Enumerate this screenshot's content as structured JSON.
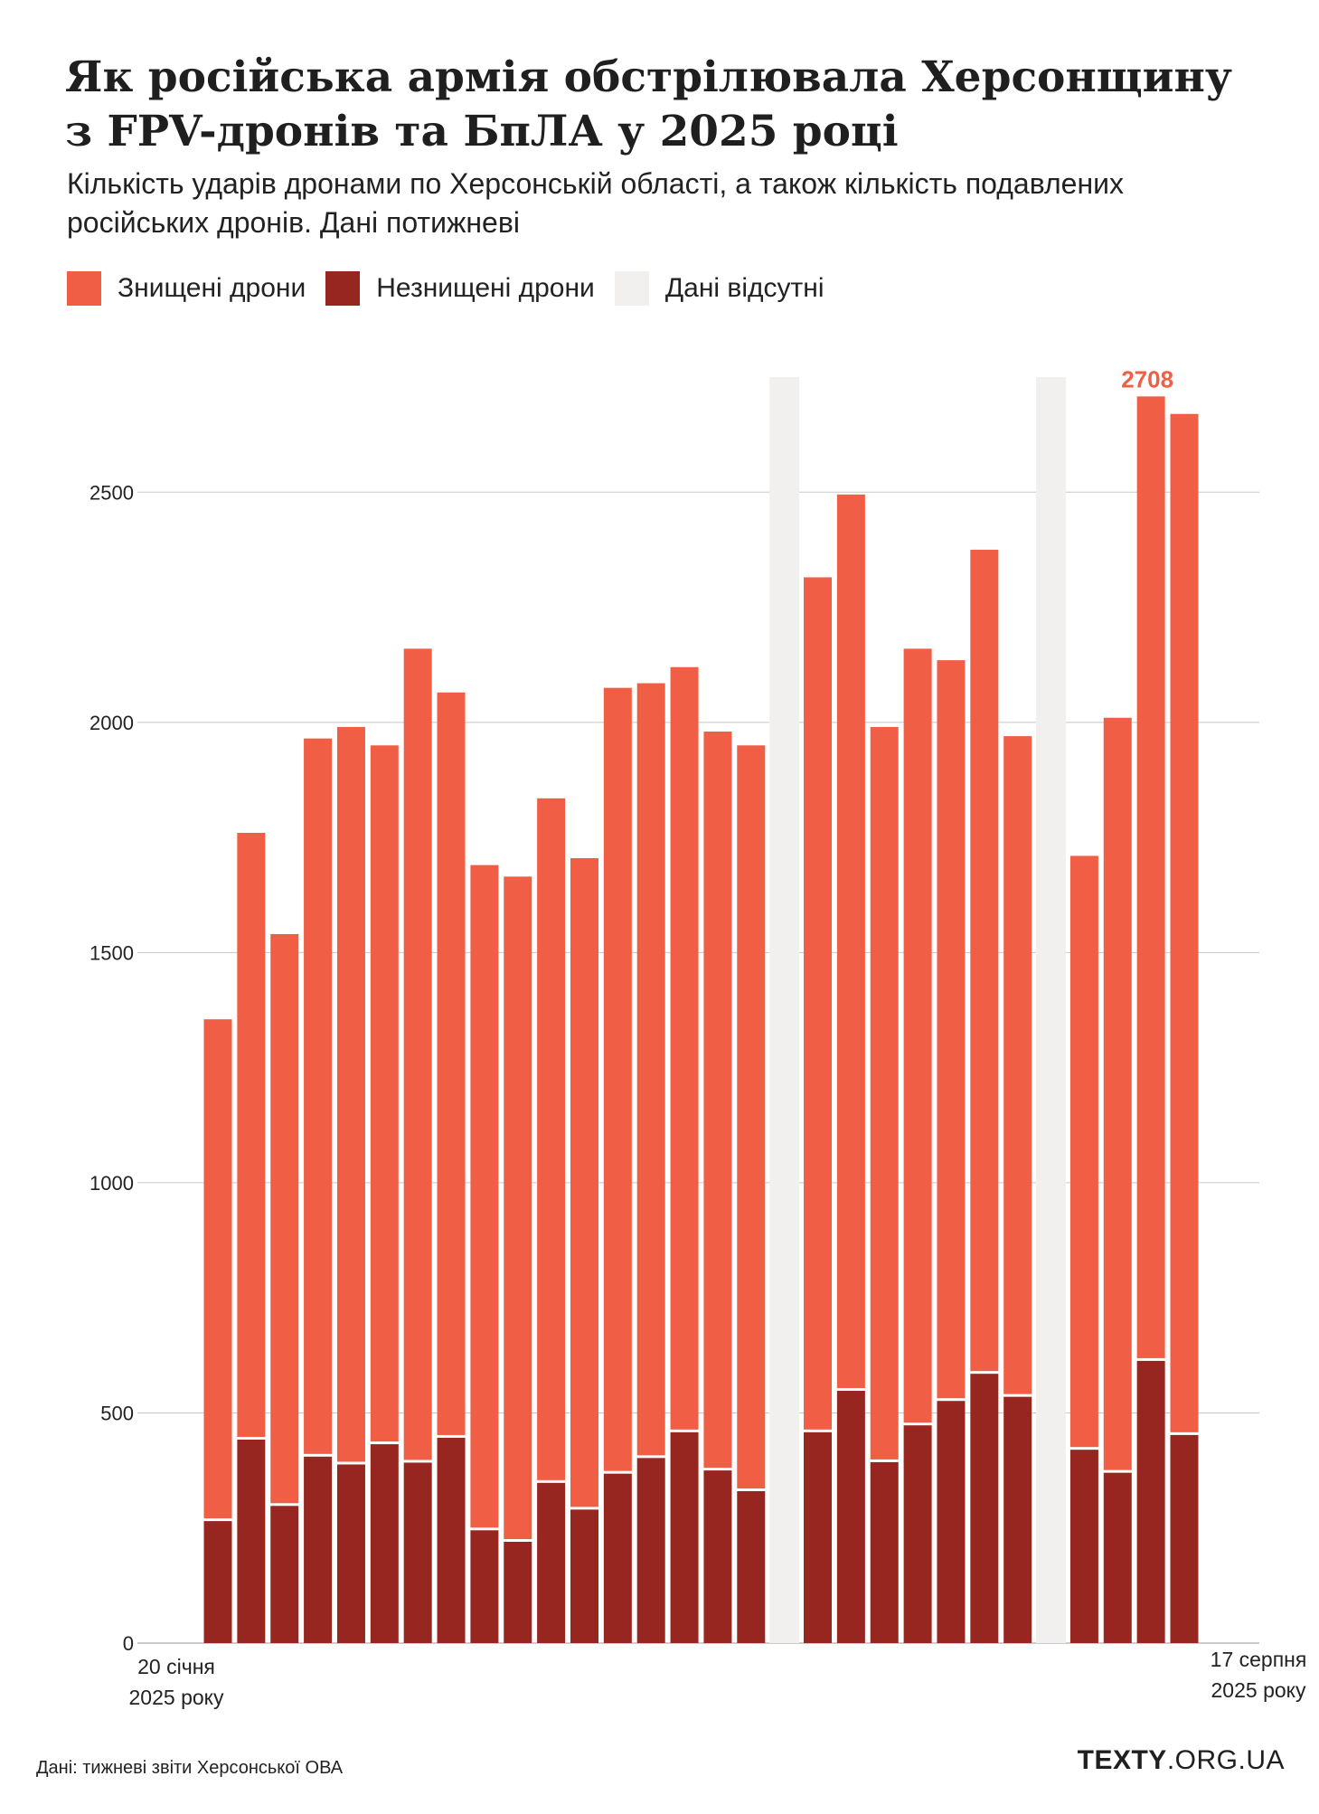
{
  "title": "Як російська армія обстрілювала Херсонщину з FPV-дронів та БпЛА у 2025 році",
  "subtitle": "Кількість ударів дронами по Херсонській області, а також кількість подавлених російських дронів. Дані потижневі",
  "legend": [
    {
      "label": "Знищені дрони",
      "color": "#f05f45"
    },
    {
      "label": "Незнищені дрони",
      "color": "#972621"
    },
    {
      "label": "Дані відсутні",
      "color": "#f1f0ee"
    }
  ],
  "source": "Дані: тижневі звіти Херсонської ОВА",
  "brand": {
    "bold": "TEXTY",
    "rest": ".ORG.UA"
  },
  "chart_data": {
    "type": "bar",
    "stacked": true,
    "title": "",
    "xlabel": "",
    "ylabel": "",
    "ylim": [
      0,
      2750
    ],
    "yticks": [
      "0",
      "500",
      "1000",
      "1500",
      "2000",
      "2500"
    ],
    "x_start_label": [
      "20 січня",
      "2025 року"
    ],
    "x_end_label": [
      "17 серпня",
      "2025 року"
    ],
    "annotation": {
      "text": "2708",
      "color": "#f05f45"
    },
    "grid": true,
    "colors": {
      "destroyed": "#f05f45",
      "not_destroyed": "#972621",
      "missing": "#f1f0ee"
    },
    "weeks": [
      {
        "total": 1355,
        "not_destroyed": 265
      },
      {
        "total": 1760,
        "not_destroyed": 442
      },
      {
        "total": 1540,
        "not_destroyed": 298
      },
      {
        "total": 1965,
        "not_destroyed": 405
      },
      {
        "total": 1990,
        "not_destroyed": 388
      },
      {
        "total": 1950,
        "not_destroyed": 432
      },
      {
        "total": 2160,
        "not_destroyed": 392
      },
      {
        "total": 2065,
        "not_destroyed": 446
      },
      {
        "total": 1690,
        "not_destroyed": 245
      },
      {
        "total": 1665,
        "not_destroyed": 220
      },
      {
        "total": 1835,
        "not_destroyed": 348
      },
      {
        "total": 1705,
        "not_destroyed": 290
      },
      {
        "total": 2075,
        "not_destroyed": 368
      },
      {
        "total": 2085,
        "not_destroyed": 402
      },
      {
        "total": 2120,
        "not_destroyed": 458
      },
      {
        "total": 1980,
        "not_destroyed": 375
      },
      {
        "total": 1950,
        "not_destroyed": 330
      },
      {
        "missing": true
      },
      {
        "total": 2315,
        "not_destroyed": 458
      },
      {
        "total": 2495,
        "not_destroyed": 548
      },
      {
        "total": 1990,
        "not_destroyed": 393
      },
      {
        "total": 2160,
        "not_destroyed": 473
      },
      {
        "total": 2135,
        "not_destroyed": 526
      },
      {
        "total": 2375,
        "not_destroyed": 585
      },
      {
        "total": 1970,
        "not_destroyed": 535
      },
      {
        "missing": true
      },
      {
        "total": 1710,
        "not_destroyed": 420
      },
      {
        "total": 2010,
        "not_destroyed": 370
      },
      {
        "total": 2708,
        "not_destroyed": 613
      },
      {
        "total": 2670,
        "not_destroyed": 452
      }
    ]
  }
}
